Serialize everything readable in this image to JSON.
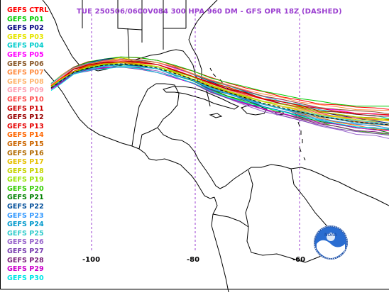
{
  "title": "TUE 250506/0600V084  300 HPA 960 DM - GFS OPR 18Z (DASHED)",
  "title_color": "#9b3fd0",
  "members": [
    {
      "label": "GEFS CTRL",
      "color": "#ff0000"
    },
    {
      "label": "GEFS P01",
      "color": "#00cc00"
    },
    {
      "label": "GEFS P02",
      "color": "#000080"
    },
    {
      "label": "GEFS P03",
      "color": "#e6e600"
    },
    {
      "label": "GEFS P04",
      "color": "#00cccc"
    },
    {
      "label": "GEFS P05",
      "color": "#ff00ff"
    },
    {
      "label": "GEFS P06",
      "color": "#8b5a2b"
    },
    {
      "label": "GEFS P07",
      "color": "#ff8c40"
    },
    {
      "label": "GEFS P08",
      "color": "#ffb36b"
    },
    {
      "label": "GEFS P09",
      "color": "#ffa0b4"
    },
    {
      "label": "GEFS P10",
      "color": "#ff4d4d"
    },
    {
      "label": "GEFS P11",
      "color": "#cc0000"
    },
    {
      "label": "GEFS P12",
      "color": "#990000"
    },
    {
      "label": "GEFS P13",
      "color": "#e60000"
    },
    {
      "label": "GEFS P14",
      "color": "#ff6600"
    },
    {
      "label": "GEFS P15",
      "color": "#cc6600"
    },
    {
      "label": "GEFS P16",
      "color": "#b36b00"
    },
    {
      "label": "GEFS P17",
      "color": "#e6c000"
    },
    {
      "label": "GEFS P18",
      "color": "#c8d400"
    },
    {
      "label": "GEFS P19",
      "color": "#99e600"
    },
    {
      "label": "GEFS P20",
      "color": "#33cc00"
    },
    {
      "label": "GEFS P21",
      "color": "#008000"
    },
    {
      "label": "GEFS P22",
      "color": "#004d99"
    },
    {
      "label": "GEFS P23",
      "color": "#3399ff"
    },
    {
      "label": "GEFS P24",
      "color": "#0099cc"
    },
    {
      "label": "GEFS P25",
      "color": "#33cccc"
    },
    {
      "label": "GEFS P26",
      "color": "#9966cc"
    },
    {
      "label": "GEFS P27",
      "color": "#7a3fb0"
    },
    {
      "label": "GEFS P28",
      "color": "#7a1f7a"
    },
    {
      "label": "GEFS P29",
      "color": "#cc00cc"
    },
    {
      "label": "GEFS P30",
      "color": "#00e6e6"
    }
  ],
  "longitude_ticks": [
    "-100",
    "-80",
    "-60"
  ],
  "grid_color": "#9b3fd0",
  "logo": {
    "name": "noaa-logo",
    "text": "NOAA"
  }
}
